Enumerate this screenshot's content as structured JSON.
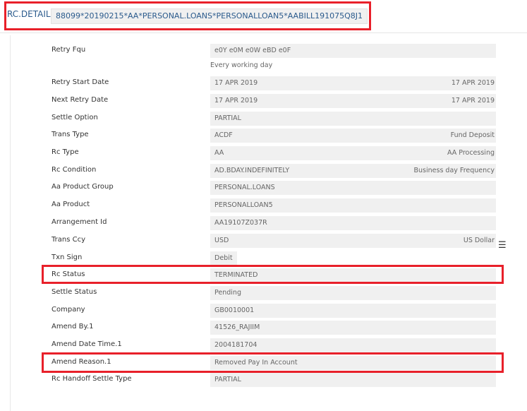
{
  "header": {
    "title": "RC.DETAIL",
    "record_id": "88099*20190215*AA*PERSONAL.LOANS*PERSONALLOAN5*AABILL191075Q8J1"
  },
  "fields": [
    {
      "label": "Retry Fqu",
      "value": "e0Y e0M e0W eBD e0F",
      "sub": "Every working day"
    },
    {
      "label": "Retry Start Date",
      "value": "17 APR 2019",
      "right": "17 APR 2019"
    },
    {
      "label": "Next Retry Date",
      "value": "17 APR 2019",
      "right": "17 APR 2019"
    },
    {
      "label": "Settle Option",
      "value": "PARTIAL"
    },
    {
      "label": "Trans Type",
      "value": "ACDF",
      "right": "Fund Deposit"
    },
    {
      "label": "Rc Type",
      "value": "AA",
      "right": "AA Processing"
    },
    {
      "label": "Rc Condition",
      "value": "AD.BDAY.INDEFINITELY",
      "right": "Business day Frequency"
    },
    {
      "label": "Aa Product Group",
      "value": "PERSONAL.LOANS"
    },
    {
      "label": "Aa Product",
      "value": "PERSONALLOAN5"
    },
    {
      "label": "Arrangement Id",
      "value": "AA19107Z037R"
    },
    {
      "label": "Trans Ccy",
      "value": "USD",
      "right": "US Dollar"
    },
    {
      "label": "Txn Sign",
      "value": "Debit"
    },
    {
      "label": "Rc Status",
      "value": "TERMINATED"
    },
    {
      "label": "Settle Status",
      "value": "Pending"
    },
    {
      "label": "Company",
      "value": "GB0010001"
    },
    {
      "label": "Amend By.1",
      "value": "41526_RAJIIM"
    },
    {
      "label": "Amend Date Time.1",
      "value": "2004181704"
    },
    {
      "label": "Amend Reason.1",
      "value": "Removed Pay In Account"
    },
    {
      "label": "Rc Handoff Settle Type",
      "value": "PARTIAL"
    }
  ],
  "highlight_color": "#e8202a"
}
